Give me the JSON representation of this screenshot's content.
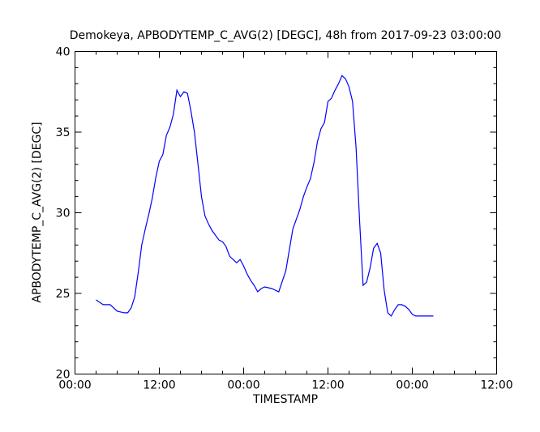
{
  "chart_data": {
    "type": "line",
    "title": "Demokeya, APBODYTEMP_C_AVG(2) [DEGC], 48h from  2017-09-23 03:00:00",
    "xlabel": "TIMESTAMP",
    "ylabel": "APBODYTEMP_C_AVG(2) [DEGC]",
    "xlim": [
      "2017-09-23 00:00",
      "2017-09-25 12:00"
    ],
    "ylim": [
      20,
      40
    ],
    "x_ticks": [
      "2017-09-23 00:00",
      "2017-09-23 12:00",
      "2017-09-24 00:00",
      "2017-09-24 12:00",
      "2017-09-25 00:00",
      "2017-09-25 12:00"
    ],
    "x_tick_labels": [
      "00:00",
      "12:00",
      "00:00",
      "12:00",
      "00:00",
      "12:00"
    ],
    "y_ticks": [
      20,
      25,
      30,
      35,
      40
    ],
    "y_tick_labels": [
      "20",
      "25",
      "30",
      "35",
      "40"
    ],
    "grid": false,
    "color": "#0000ff",
    "series": [
      {
        "x": [
          "2017-09-23 03:00",
          "2017-09-23 04:00",
          "2017-09-23 05:00",
          "2017-09-23 06:00",
          "2017-09-23 07:00",
          "2017-09-23 07:30",
          "2017-09-23 08:00",
          "2017-09-23 08:30",
          "2017-09-23 09:00",
          "2017-09-23 09:30",
          "2017-09-23 10:00",
          "2017-09-23 10:30",
          "2017-09-23 11:00",
          "2017-09-23 11:30",
          "2017-09-23 12:00",
          "2017-09-23 12:30",
          "2017-09-23 13:00",
          "2017-09-23 13:30",
          "2017-09-23 14:00",
          "2017-09-23 14:30",
          "2017-09-23 15:00",
          "2017-09-23 15:30",
          "2017-09-23 16:00",
          "2017-09-23 16:30",
          "2017-09-23 17:00",
          "2017-09-23 17:30",
          "2017-09-23 18:00",
          "2017-09-23 18:30",
          "2017-09-23 19:00",
          "2017-09-23 19:30",
          "2017-09-23 20:00",
          "2017-09-23 20:30",
          "2017-09-23 21:00",
          "2017-09-23 21:30",
          "2017-09-23 22:00",
          "2017-09-23 22:30",
          "2017-09-23 23:00",
          "2017-09-23 23:30",
          "2017-09-24 00:00",
          "2017-09-24 00:30",
          "2017-09-24 01:00",
          "2017-09-24 01:30",
          "2017-09-24 02:00",
          "2017-09-24 02:30",
          "2017-09-24 03:00",
          "2017-09-24 04:00",
          "2017-09-24 05:00",
          "2017-09-24 06:00",
          "2017-09-24 07:00",
          "2017-09-24 08:00",
          "2017-09-24 08:30",
          "2017-09-24 09:00",
          "2017-09-24 09:30",
          "2017-09-24 10:00",
          "2017-09-24 10:30",
          "2017-09-24 11:00",
          "2017-09-24 11:30",
          "2017-09-24 12:00",
          "2017-09-24 12:30",
          "2017-09-24 13:00",
          "2017-09-24 13:30",
          "2017-09-24 14:00",
          "2017-09-24 14:30",
          "2017-09-24 15:00",
          "2017-09-24 15:30",
          "2017-09-24 16:00",
          "2017-09-24 16:30",
          "2017-09-24 17:00",
          "2017-09-24 17:30",
          "2017-09-24 18:00",
          "2017-09-24 18:30",
          "2017-09-24 19:00",
          "2017-09-24 19:30",
          "2017-09-24 20:00",
          "2017-09-24 20:30",
          "2017-09-24 21:00",
          "2017-09-24 21:30",
          "2017-09-24 22:00",
          "2017-09-24 22:30",
          "2017-09-24 23:00",
          "2017-09-24 23:30",
          "2017-09-25 00:00",
          "2017-09-25 00:30",
          "2017-09-25 01:00",
          "2017-09-25 01:30",
          "2017-09-25 02:00",
          "2017-09-25 03:00"
        ],
        "values": [
          24.6,
          24.3,
          24.3,
          23.9,
          23.8,
          23.8,
          24.1,
          24.8,
          26.3,
          28.0,
          29.0,
          29.9,
          30.9,
          32.2,
          33.2,
          33.6,
          34.8,
          35.3,
          36.1,
          37.6,
          37.2,
          37.5,
          37.4,
          36.3,
          35.0,
          33.0,
          31.0,
          29.8,
          29.3,
          28.9,
          28.6,
          28.3,
          28.2,
          27.9,
          27.3,
          27.1,
          26.9,
          27.1,
          26.7,
          26.2,
          25.8,
          25.5,
          25.1,
          25.3,
          25.4,
          25.3,
          25.1,
          26.4,
          29.0,
          30.2,
          31.0,
          31.6,
          32.1,
          33.1,
          34.4,
          35.2,
          35.6,
          36.9,
          37.1,
          37.6,
          38.0,
          38.5,
          38.3,
          37.8,
          36.9,
          34.0,
          29.5,
          25.5,
          25.7,
          26.6,
          27.8,
          28.1,
          27.5,
          25.2,
          23.8,
          23.6,
          24.0,
          24.3,
          24.3,
          24.2,
          24.0,
          23.7,
          23.6,
          23.6,
          23.6,
          23.6,
          23.6
        ]
      }
    ]
  }
}
